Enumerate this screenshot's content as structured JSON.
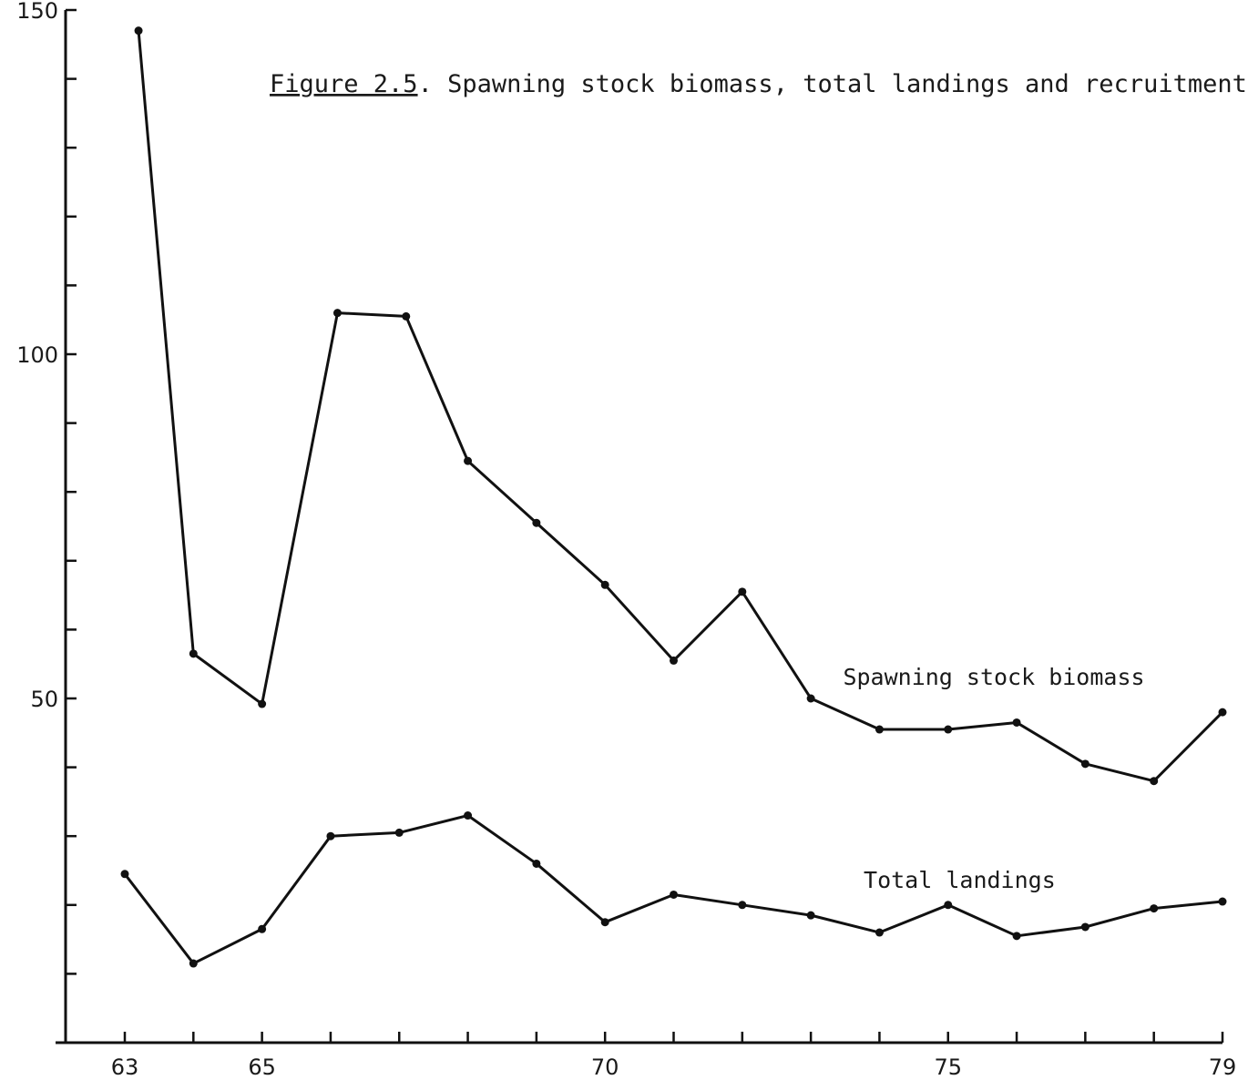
{
  "chart_data": {
    "type": "line",
    "title_prefix": "Figure 2.5",
    "title_rest": ".  Spawning stock biomass, total landings and recruitment",
    "xlabel": "",
    "ylabel": "",
    "xlim": [
      62,
      79
    ],
    "ylim": [
      0,
      150
    ],
    "x_ticks": [
      63,
      64,
      65,
      66,
      67,
      68,
      69,
      70,
      71,
      72,
      73,
      74,
      75,
      76,
      77,
      78,
      79
    ],
    "x_tick_labels": [
      {
        "value": 63,
        "label": "63"
      },
      {
        "value": 65,
        "label": "65"
      },
      {
        "value": 70,
        "label": "70"
      },
      {
        "value": 75,
        "label": "75"
      },
      {
        "value": 79,
        "label": "79"
      }
    ],
    "y_ticks": [
      0,
      10,
      20,
      30,
      40,
      50,
      60,
      70,
      80,
      90,
      100,
      110,
      120,
      130,
      140,
      150
    ],
    "y_tick_labels": [
      {
        "value": 50,
        "label": "50"
      },
      {
        "value": 100,
        "label": "100"
      },
      {
        "value": 150,
        "label": "150"
      }
    ],
    "series": [
      {
        "name": "Spawning stock biomass",
        "label_anchor": {
          "x": 74,
          "y": 52
        },
        "x": [
          63.2,
          64,
          65,
          66.1,
          67.1,
          68,
          69,
          70,
          71,
          72,
          73,
          74,
          75,
          76,
          77,
          78,
          79
        ],
        "values": [
          147,
          56.5,
          49.2,
          106,
          105.5,
          84.5,
          75.5,
          66.5,
          55.5,
          65.5,
          50,
          45.5,
          45.5,
          46.5,
          40.5,
          38,
          48
        ]
      },
      {
        "name": "Total landings",
        "label_anchor": {
          "x": 74.3,
          "y": 22.5
        },
        "x": [
          63,
          64,
          65,
          66,
          67,
          68,
          69,
          70,
          71,
          72,
          73,
          74,
          75,
          76,
          77,
          78,
          79
        ],
        "values": [
          24.5,
          11.5,
          16.5,
          30,
          30.5,
          33,
          26,
          17.5,
          21.5,
          20,
          18.5,
          16,
          20,
          15.5,
          16.8,
          19.5,
          20.5
        ]
      }
    ]
  }
}
